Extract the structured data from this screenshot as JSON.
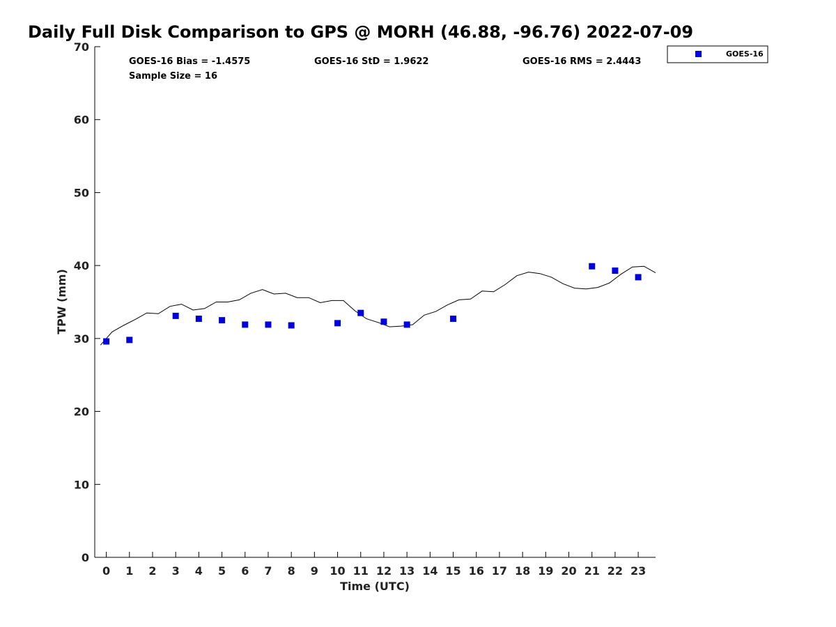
{
  "chart_data": {
    "type": "scatter",
    "title": "Daily Full Disk Comparison to GPS @ MORH (46.88, -96.76) 2022-07-09",
    "xlabel": "Time (UTC)",
    "ylabel": "TPW (mm)",
    "xlim": [
      -0.5,
      23.75
    ],
    "ylim": [
      0,
      70
    ],
    "x_ticks": [
      0,
      1,
      2,
      3,
      4,
      5,
      6,
      7,
      8,
      9,
      10,
      11,
      12,
      13,
      14,
      15,
      16,
      17,
      18,
      19,
      20,
      21,
      22,
      23
    ],
    "y_ticks": [
      0,
      10,
      20,
      30,
      40,
      50,
      60,
      70
    ],
    "grid": false,
    "legend_position": "top-right",
    "stats": {
      "bias": "GOES-16 Bias = -1.4575",
      "std": "GOES-16 StD = 1.9622",
      "rms": "GOES-16 RMS = 2.4443",
      "sample_size": "Sample Size = 16"
    },
    "series": [
      {
        "name": "GOES-16",
        "kind": "scatter",
        "color": "#0000dd",
        "marker": "square",
        "x": [
          0,
          1,
          3,
          4,
          5,
          6,
          7,
          8,
          10,
          11,
          12,
          13,
          15,
          21,
          22,
          23
        ],
        "y": [
          29.6,
          29.8,
          33.1,
          32.7,
          32.5,
          31.9,
          31.9,
          31.8,
          32.1,
          33.5,
          32.3,
          31.9,
          32.7,
          39.9,
          39.3,
          38.4
        ]
      },
      {
        "kind": "line",
        "color": "#000000",
        "x": [
          -0.25,
          0.25,
          0.75,
          1.25,
          1.75,
          2.25,
          2.75,
          3.25,
          3.75,
          4.25,
          4.75,
          5.25,
          5.75,
          6.25,
          6.75,
          7.25,
          7.75,
          8.25,
          8.75,
          9.25,
          9.75,
          10.25,
          10.75,
          11.25,
          11.75,
          12.25,
          12.75,
          13.25,
          13.75,
          14.25,
          14.75,
          15.25,
          15.75,
          16.25,
          16.75,
          17.25,
          17.75,
          18.25,
          18.75,
          19.25,
          19.75,
          20.25,
          20.75,
          21.25,
          21.75,
          22.25,
          22.75,
          23.25,
          23.75
        ],
        "y": [
          29.1,
          30.9,
          31.8,
          32.6,
          33.5,
          33.4,
          34.4,
          34.7,
          33.9,
          34.1,
          35.0,
          35.0,
          35.3,
          36.2,
          36.7,
          36.1,
          36.2,
          35.6,
          35.6,
          34.9,
          35.2,
          35.2,
          33.8,
          32.7,
          32.2,
          31.6,
          31.7,
          31.9,
          33.2,
          33.7,
          34.6,
          35.3,
          35.4,
          36.5,
          36.4,
          37.4,
          38.6,
          39.1,
          38.9,
          38.4,
          37.5,
          36.9,
          36.8,
          37.0,
          37.6,
          38.8,
          39.8,
          39.9,
          39.0
        ]
      }
    ]
  }
}
